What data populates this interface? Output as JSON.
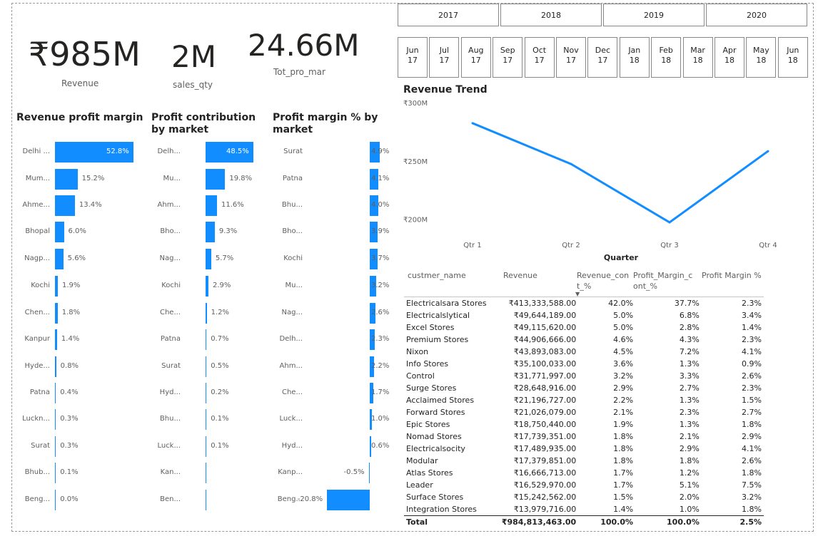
{
  "kpis": {
    "revenue": {
      "value": "₹985M",
      "label": "Revenue"
    },
    "sales_qty": {
      "value": "2M",
      "label": "sales_qty"
    },
    "tot_pro_mar": {
      "value": "24.66M",
      "label": "Tot_pro_mar"
    }
  },
  "year_slicer": [
    "2017",
    "2018",
    "2019",
    "2020"
  ],
  "month_slicer": [
    {
      "m": "Jun",
      "y": "17"
    },
    {
      "m": "Jul",
      "y": "17"
    },
    {
      "m": "Aug",
      "y": "17"
    },
    {
      "m": "Sep",
      "y": "17"
    },
    {
      "m": "Oct",
      "y": "17"
    },
    {
      "m": "Nov",
      "y": "17"
    },
    {
      "m": "Dec",
      "y": "17"
    },
    {
      "m": "Jan",
      "y": "18"
    },
    {
      "m": "Feb",
      "y": "18"
    },
    {
      "m": "Mar",
      "y": "18"
    },
    {
      "m": "Apr",
      "y": "18"
    },
    {
      "m": "May",
      "y": "18"
    },
    {
      "m": "Jun",
      "y": "18"
    }
  ],
  "chart_data": [
    {
      "type": "bar",
      "title": "Revenue profit margin",
      "categories": [
        "Delhi ...",
        "Mum...",
        "Ahme...",
        "Bhopal",
        "Nagp...",
        "Kochi",
        "Chen...",
        "Kanpur",
        "Hyde...",
        "Patna",
        "Luckn...",
        "Surat",
        "Bhub...",
        "Beng..."
      ],
      "values": [
        52.8,
        15.2,
        13.4,
        6.0,
        5.6,
        1.9,
        1.8,
        1.4,
        0.8,
        0.4,
        0.3,
        0.3,
        0.1,
        0.0
      ],
      "labels": [
        "52.8%",
        "15.2%",
        "13.4%",
        "6.0%",
        "5.6%",
        "1.9%",
        "1.8%",
        "1.4%",
        "0.8%",
        "0.4%",
        "0.3%",
        "0.3%",
        "0.1%",
        "0.0%"
      ],
      "max": 52.8
    },
    {
      "type": "bar",
      "title": "Profit contribution by market",
      "categories": [
        "Delh...",
        "Mu...",
        "Ahm...",
        "Bho...",
        "Nag...",
        "Kochi",
        "Che...",
        "Patna",
        "Surat",
        "Hyd...",
        "Bhu...",
        "Luck...",
        "Kan...",
        "Ben..."
      ],
      "values": [
        48.5,
        19.8,
        11.6,
        9.3,
        5.7,
        2.9,
        1.2,
        0.7,
        0.5,
        0.2,
        0.1,
        0.1,
        0.0,
        0.0
      ],
      "labels": [
        "48.5%",
        "19.8%",
        "11.6%",
        "9.3%",
        "5.7%",
        "2.9%",
        "1.2%",
        "0.7%",
        "0.5%",
        "0.2%",
        "0.1%",
        "0.1%",
        "",
        ""
      ],
      "max": 48.5
    },
    {
      "type": "bar",
      "title": "Profit margin % by market",
      "categories": [
        "Surat",
        "Patna",
        "Bhu...",
        "Bho...",
        "Kochi",
        "Mu...",
        "Nag...",
        "Delh...",
        "Ahm...",
        "Che...",
        "Luck...",
        "Hyd...",
        "Kanp...",
        "Beng..."
      ],
      "values": [
        4.9,
        4.1,
        4.0,
        3.9,
        3.7,
        3.2,
        2.6,
        2.3,
        2.2,
        1.7,
        1.0,
        0.6,
        -0.5,
        -20.8
      ],
      "labels": [
        "4.9%",
        "4.1%",
        "4.0%",
        "3.9%",
        "3.7%",
        "3.2%",
        "2.6%",
        "2.3%",
        "2.2%",
        "1.7%",
        "1.0%",
        "0.6%",
        "-0.5%",
        "-20.8%"
      ],
      "min": -20.8,
      "max": 4.9
    },
    {
      "type": "line",
      "title": "Revenue Trend",
      "xlabel": "Quarter",
      "categories": [
        "Qtr 1",
        "Qtr 2",
        "Qtr 3",
        "Qtr 4"
      ],
      "values": [
        283,
        248,
        198,
        259
      ],
      "yticks": [
        {
          "v": 300,
          "label": "₹300M"
        },
        {
          "v": 250,
          "label": "₹250M"
        },
        {
          "v": 200,
          "label": "₹200M"
        }
      ],
      "ylim": [
        190,
        300
      ]
    }
  ],
  "table": {
    "headers": [
      "custmer_name",
      "Revenue",
      "Revenue_con t_%",
      "Profit_Margin_c ont_%",
      "Profit Margin %"
    ],
    "rows": [
      [
        "Electricalsara Stores",
        "₹413,333,588.00",
        "42.0%",
        "37.7%",
        "2.3%"
      ],
      [
        "Electricalslytical",
        "₹49,644,189.00",
        "5.0%",
        "6.8%",
        "3.4%"
      ],
      [
        "Excel Stores",
        "₹49,115,620.00",
        "5.0%",
        "2.8%",
        "1.4%"
      ],
      [
        "Premium Stores",
        "₹44,906,666.00",
        "4.6%",
        "4.3%",
        "2.3%"
      ],
      [
        "Nixon",
        "₹43,893,083.00",
        "4.5%",
        "7.2%",
        "4.1%"
      ],
      [
        "Info Stores",
        "₹35,100,033.00",
        "3.6%",
        "1.3%",
        "0.9%"
      ],
      [
        "Control",
        "₹31,771,997.00",
        "3.2%",
        "3.3%",
        "2.6%"
      ],
      [
        "Surge Stores",
        "₹28,648,916.00",
        "2.9%",
        "2.7%",
        "2.3%"
      ],
      [
        "Acclaimed Stores",
        "₹21,196,727.00",
        "2.2%",
        "1.3%",
        "1.5%"
      ],
      [
        "Forward Stores",
        "₹21,026,079.00",
        "2.1%",
        "2.3%",
        "2.7%"
      ],
      [
        "Epic Stores",
        "₹18,750,440.00",
        "1.9%",
        "1.3%",
        "1.8%"
      ],
      [
        "Nomad Stores",
        "₹17,739,351.00",
        "1.8%",
        "2.1%",
        "2.9%"
      ],
      [
        "Electricalsocity",
        "₹17,489,935.00",
        "1.8%",
        "2.9%",
        "4.1%"
      ],
      [
        "Modular",
        "₹17,379,851.00",
        "1.8%",
        "1.8%",
        "2.6%"
      ],
      [
        "Atlas Stores",
        "₹16,666,713.00",
        "1.7%",
        "1.2%",
        "1.8%"
      ],
      [
        "Leader",
        "₹16,529,970.00",
        "1.7%",
        "5.1%",
        "7.5%"
      ],
      [
        "Surface Stores",
        "₹15,242,562.00",
        "1.5%",
        "2.0%",
        "3.2%"
      ],
      [
        "Integration Stores",
        "₹13,979,716.00",
        "1.4%",
        "1.0%",
        "1.8%"
      ]
    ],
    "total": [
      "Total",
      "₹984,813,463.00",
      "100.0%",
      "100.0%",
      "2.5%"
    ]
  }
}
